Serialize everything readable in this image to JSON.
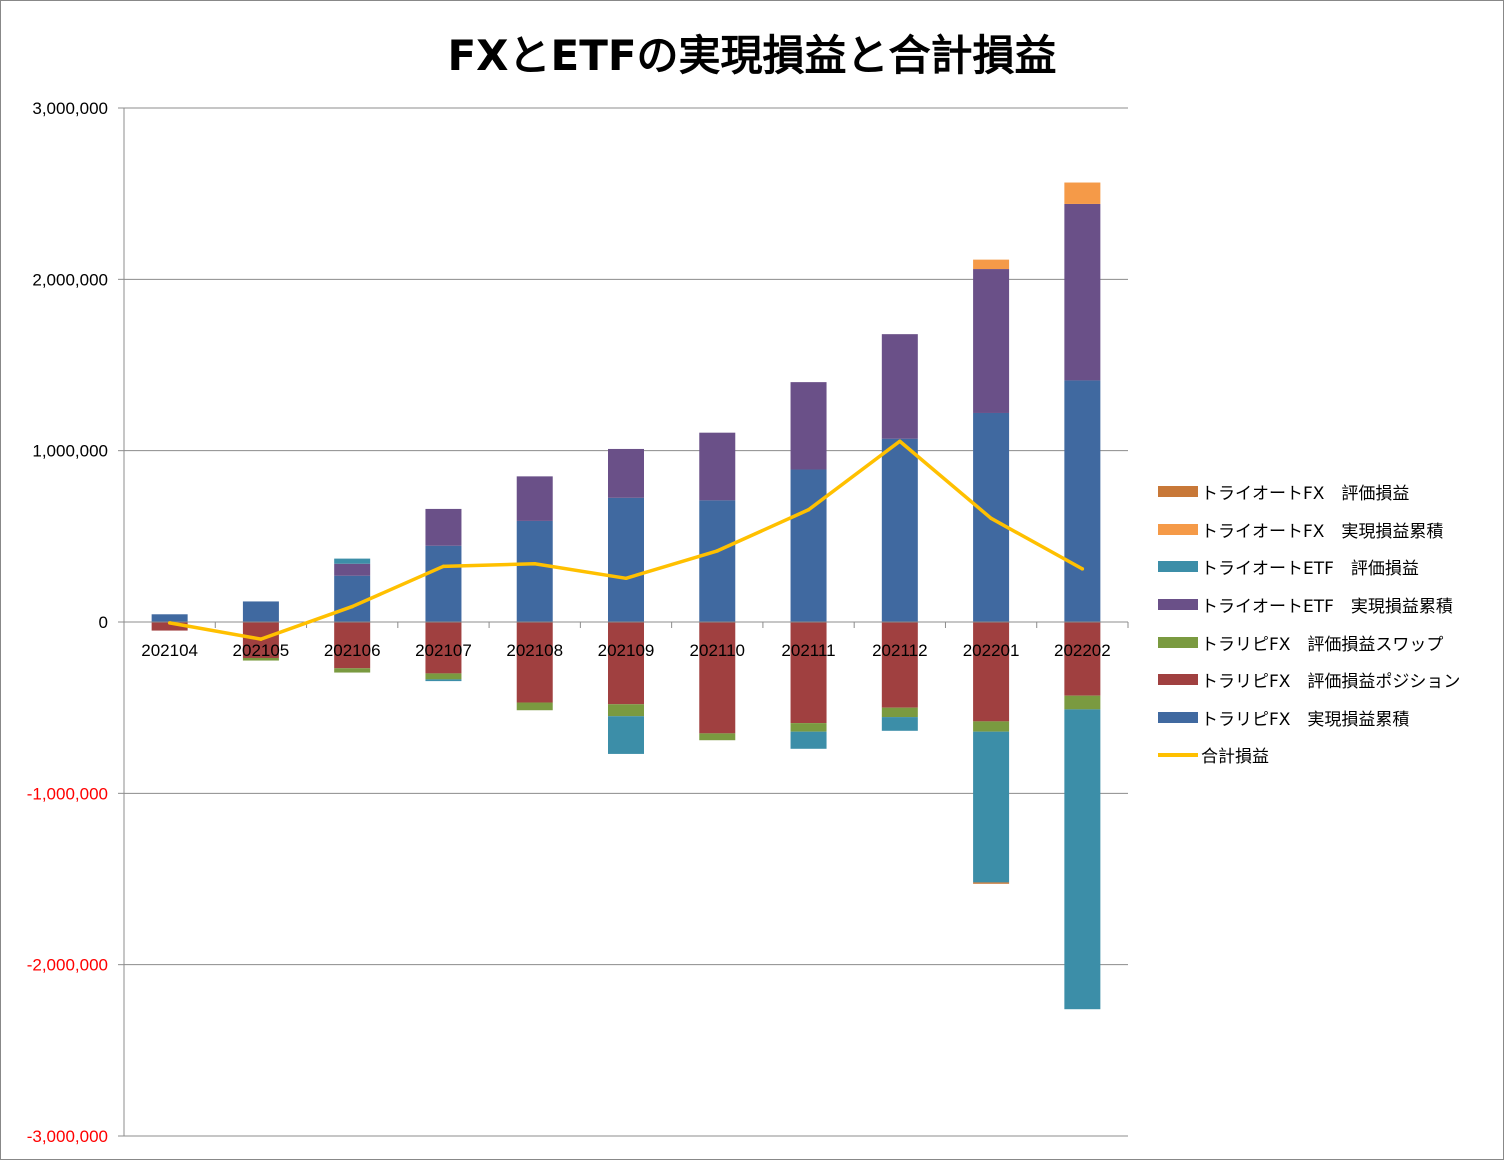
{
  "chart_data": {
    "type": "bar",
    "stacked": true,
    "title": "FXとETFの実現損益と合計損益",
    "xlabel": "",
    "ylabel": "",
    "ylim": [
      -3000000,
      3000000
    ],
    "yticks": [
      3000000,
      2000000,
      1000000,
      0,
      -1000000,
      -2000000,
      -3000000
    ],
    "ytick_labels": [
      "3,000,000",
      "2,000,000",
      "1,000,000",
      "0",
      "-1,000,000",
      "-2,000,000",
      "-3,000,000"
    ],
    "negative_tick_color": "#ff0000",
    "grid": true,
    "legend_position": "right",
    "categories": [
      "202104",
      "202105",
      "202106",
      "202107",
      "202108",
      "202109",
      "202110",
      "202111",
      "202112",
      "202201",
      "202202"
    ],
    "series": [
      {
        "name": "トラリピFX　実現損益累積",
        "color": "#4069a0",
        "values": [
          45000,
          120000,
          270000,
          445000,
          590000,
          725000,
          710000,
          890000,
          1070000,
          1220000,
          1410000
        ]
      },
      {
        "name": "トラリピFX　評価損益ポジション",
        "color": "#a04040",
        "values": [
          -50000,
          -210000,
          -270000,
          -300000,
          -470000,
          -480000,
          -650000,
          -590000,
          -500000,
          -580000,
          -430000
        ]
      },
      {
        "name": "トラリピFX　評価損益スワップ",
        "color": "#7a9a40",
        "values": [
          0,
          -15000,
          -25000,
          -35000,
          -45000,
          -70000,
          -40000,
          -50000,
          -55000,
          -60000,
          -80000
        ]
      },
      {
        "name": "トライオートETF　実現損益累積",
        "color": "#6a5088",
        "values": [
          0,
          0,
          70000,
          215000,
          260000,
          285000,
          395000,
          510000,
          610000,
          840000,
          1030000
        ]
      },
      {
        "name": "トライオートETF　評価損益",
        "color": "#3c8ea8",
        "values": [
          0,
          0,
          30000,
          -10000,
          0,
          -220000,
          0,
          -100000,
          -80000,
          -880000,
          -1750000
        ]
      },
      {
        "name": "トライオートFX　実現損益累積",
        "color": "#f59a48",
        "values": [
          0,
          0,
          0,
          0,
          0,
          0,
          0,
          0,
          0,
          55000,
          125000
        ]
      },
      {
        "name": "トライオートFX　評価損益",
        "color": "#c87838",
        "values": [
          0,
          0,
          0,
          0,
          0,
          0,
          0,
          0,
          0,
          -8000,
          0
        ]
      }
    ],
    "line": {
      "name": "合計損益",
      "color": "#ffc000",
      "values": [
        -5000,
        -100000,
        90000,
        325000,
        340000,
        255000,
        415000,
        655000,
        1055000,
        605000,
        310000
      ]
    },
    "legend_order": [
      "トライオートFX　評価損益",
      "トライオートFX　実現損益累積",
      "トライオートETF　評価損益",
      "トライオートETF　実現損益累積",
      "トラリピFX　評価損益スワップ",
      "トラリピFX　評価損益ポジション",
      "トラリピFX　実現損益累積",
      "合計損益"
    ]
  }
}
